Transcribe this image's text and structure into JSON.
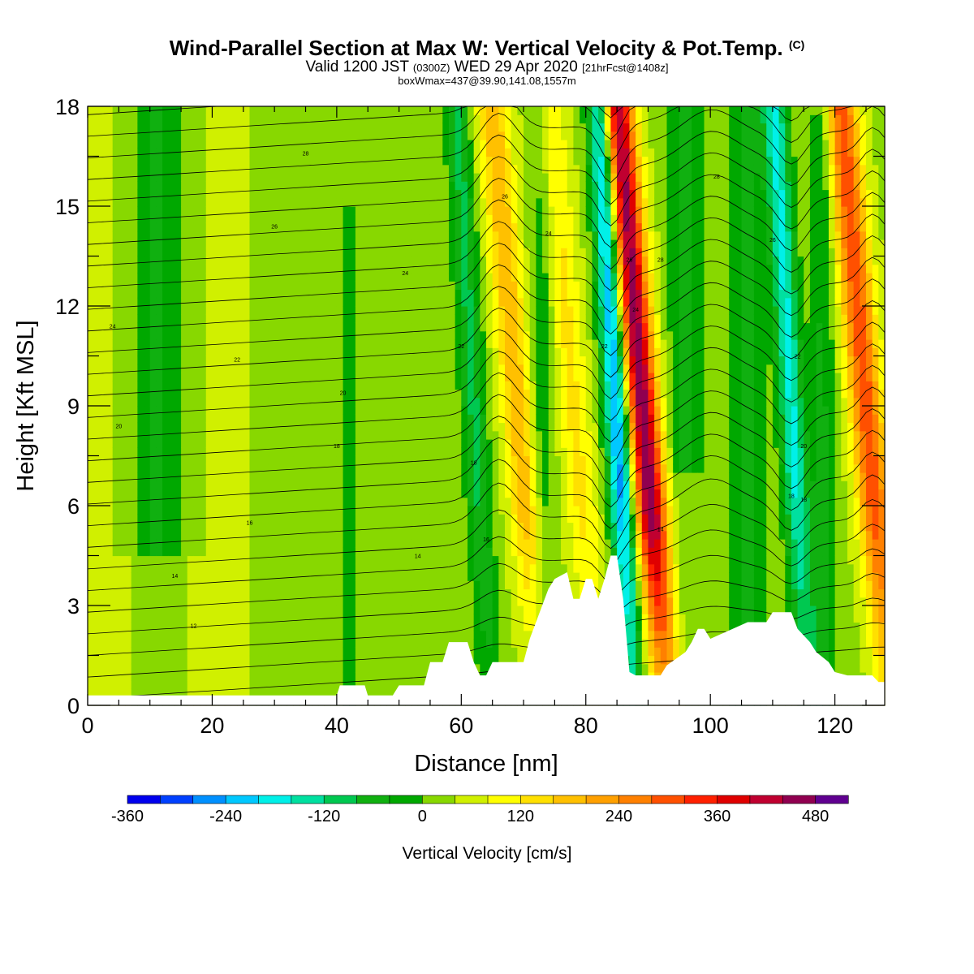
{
  "header": {
    "title": "Wind-Parallel Section at Max W: Vertical Velocity & Pot.Temp.",
    "title_mark": "(C)",
    "valid_prefix": "Valid 1200 JST",
    "valid_utc": "(0300Z)",
    "valid_date": "WED 29 Apr 2020",
    "forecast": "[21hrFcst@1408z]",
    "box_info": "boxWmax=437@39.90,141.08,1557m"
  },
  "chart_data": {
    "type": "heatmap",
    "xlabel": "Distance [nm]",
    "ylabel": "Height [Kft MSL]",
    "xlim": [
      0,
      128
    ],
    "ylim": [
      0,
      18
    ],
    "x_ticks": [
      0,
      20,
      40,
      60,
      80,
      100,
      120
    ],
    "y_ticks": [
      0,
      3,
      6,
      9,
      12,
      15,
      18
    ],
    "colorbar": {
      "label": "Vertical Velocity [cm/s]",
      "min": -360,
      "max": 520,
      "step": 40,
      "tick_labels": [
        "-360",
        "-240",
        "-120",
        "0",
        "120",
        "240",
        "360",
        "480"
      ],
      "tick_values": [
        -360,
        -240,
        -120,
        0,
        120,
        240,
        360,
        480
      ],
      "colors": [
        "#0000ee",
        "#0040ff",
        "#0090ff",
        "#00c8ff",
        "#00f0e8",
        "#00e0a0",
        "#00c850",
        "#10b010",
        "#00a800",
        "#88d800",
        "#d0f000",
        "#ffff00",
        "#ffe000",
        "#ffc000",
        "#ffa000",
        "#ff8000",
        "#ff5000",
        "#ff2000",
        "#e00000",
        "#c00030",
        "#900050",
        "#600090"
      ]
    },
    "updraft_bands": [
      {
        "x_nm": 89,
        "peak_cms": 440
      },
      {
        "x_nm": 69,
        "peak_cms": 160
      },
      {
        "x_nm": 125,
        "peak_cms": 280
      },
      {
        "x_nm": 78,
        "peak_cms": 100
      }
    ],
    "downdraft_bands": [
      {
        "x_nm": 85,
        "peak_cms": -300
      },
      {
        "x_nm": 113,
        "peak_cms": -200
      },
      {
        "x_nm": 62,
        "peak_cms": -120
      }
    ],
    "terrain_kft": [
      [
        0,
        0.3
      ],
      [
        40,
        0.3
      ],
      [
        40.5,
        0.6
      ],
      [
        44.5,
        0.6
      ],
      [
        45,
        0.3
      ],
      [
        49,
        0.3
      ],
      [
        50,
        0.6
      ],
      [
        54,
        0.6
      ],
      [
        55,
        1.3
      ],
      [
        57,
        1.3
      ],
      [
        58,
        1.9
      ],
      [
        61,
        1.9
      ],
      [
        62,
        1.3
      ],
      [
        63,
        0.9
      ],
      [
        64,
        0.9
      ],
      [
        65,
        1.3
      ],
      [
        70,
        1.3
      ],
      [
        71,
        2.0
      ],
      [
        72,
        2.5
      ],
      [
        73,
        3.0
      ],
      [
        74,
        3.5
      ],
      [
        75,
        3.8
      ],
      [
        77,
        4.0
      ],
      [
        78,
        3.2
      ],
      [
        79,
        3.2
      ],
      [
        80,
        3.8
      ],
      [
        81,
        3.8
      ],
      [
        82,
        3.2
      ],
      [
        83,
        3.8
      ],
      [
        84,
        4.5
      ],
      [
        85,
        4.5
      ],
      [
        86,
        3.2
      ],
      [
        87,
        1.0
      ],
      [
        88,
        0.9
      ],
      [
        92,
        0.9
      ],
      [
        93,
        1.2
      ],
      [
        96,
        1.6
      ],
      [
        97,
        1.9
      ],
      [
        98,
        2.3
      ],
      [
        99,
        2.3
      ],
      [
        100,
        2.0
      ],
      [
        106,
        2.5
      ],
      [
        109,
        2.5
      ],
      [
        110,
        2.8
      ],
      [
        113,
        2.8
      ],
      [
        114,
        2.3
      ],
      [
        116,
        1.9
      ],
      [
        117,
        1.6
      ],
      [
        119,
        1.3
      ],
      [
        120,
        1.0
      ],
      [
        122,
        0.9
      ],
      [
        126,
        0.9
      ],
      [
        127,
        0.7
      ],
      [
        128,
        0.7
      ]
    ],
    "theta_contour_labels": [
      {
        "text": "12",
        "x": 17,
        "y": 2.4
      },
      {
        "text": "14",
        "x": 14,
        "y": 3.9
      },
      {
        "text": "14",
        "x": 53,
        "y": 4.5
      },
      {
        "text": "16",
        "x": 26,
        "y": 5.5
      },
      {
        "text": "16",
        "x": 64,
        "y": 5.0
      },
      {
        "text": "14",
        "x": 92,
        "y": 5.3
      },
      {
        "text": "18",
        "x": 40,
        "y": 7.8
      },
      {
        "text": "18",
        "x": 62,
        "y": 7.3
      },
      {
        "text": "18",
        "x": 113,
        "y": 6.3
      },
      {
        "text": "18",
        "x": 115,
        "y": 6.2
      },
      {
        "text": "20",
        "x": 5,
        "y": 8.4
      },
      {
        "text": "20",
        "x": 41,
        "y": 9.4
      },
      {
        "text": "20",
        "x": 115,
        "y": 7.8
      },
      {
        "text": "22",
        "x": 24,
        "y": 10.4
      },
      {
        "text": "22",
        "x": 60,
        "y": 10.8
      },
      {
        "text": "22",
        "x": 83,
        "y": 10.8
      },
      {
        "text": "22",
        "x": 114,
        "y": 10.5
      },
      {
        "text": "24",
        "x": 4,
        "y": 11.4
      },
      {
        "text": "24",
        "x": 51,
        "y": 13.0
      },
      {
        "text": "24",
        "x": 74,
        "y": 14.2
      },
      {
        "text": "24",
        "x": 88,
        "y": 11.9
      },
      {
        "text": "26",
        "x": 30,
        "y": 14.4
      },
      {
        "text": "26",
        "x": 67,
        "y": 15.3
      },
      {
        "text": "26",
        "x": 87,
        "y": 13.4
      },
      {
        "text": "26",
        "x": 110,
        "y": 14.0
      },
      {
        "text": "28",
        "x": 35,
        "y": 16.6
      },
      {
        "text": "28",
        "x": 92,
        "y": 13.4
      },
      {
        "text": "28",
        "x": 101,
        "y": 15.9
      }
    ]
  }
}
